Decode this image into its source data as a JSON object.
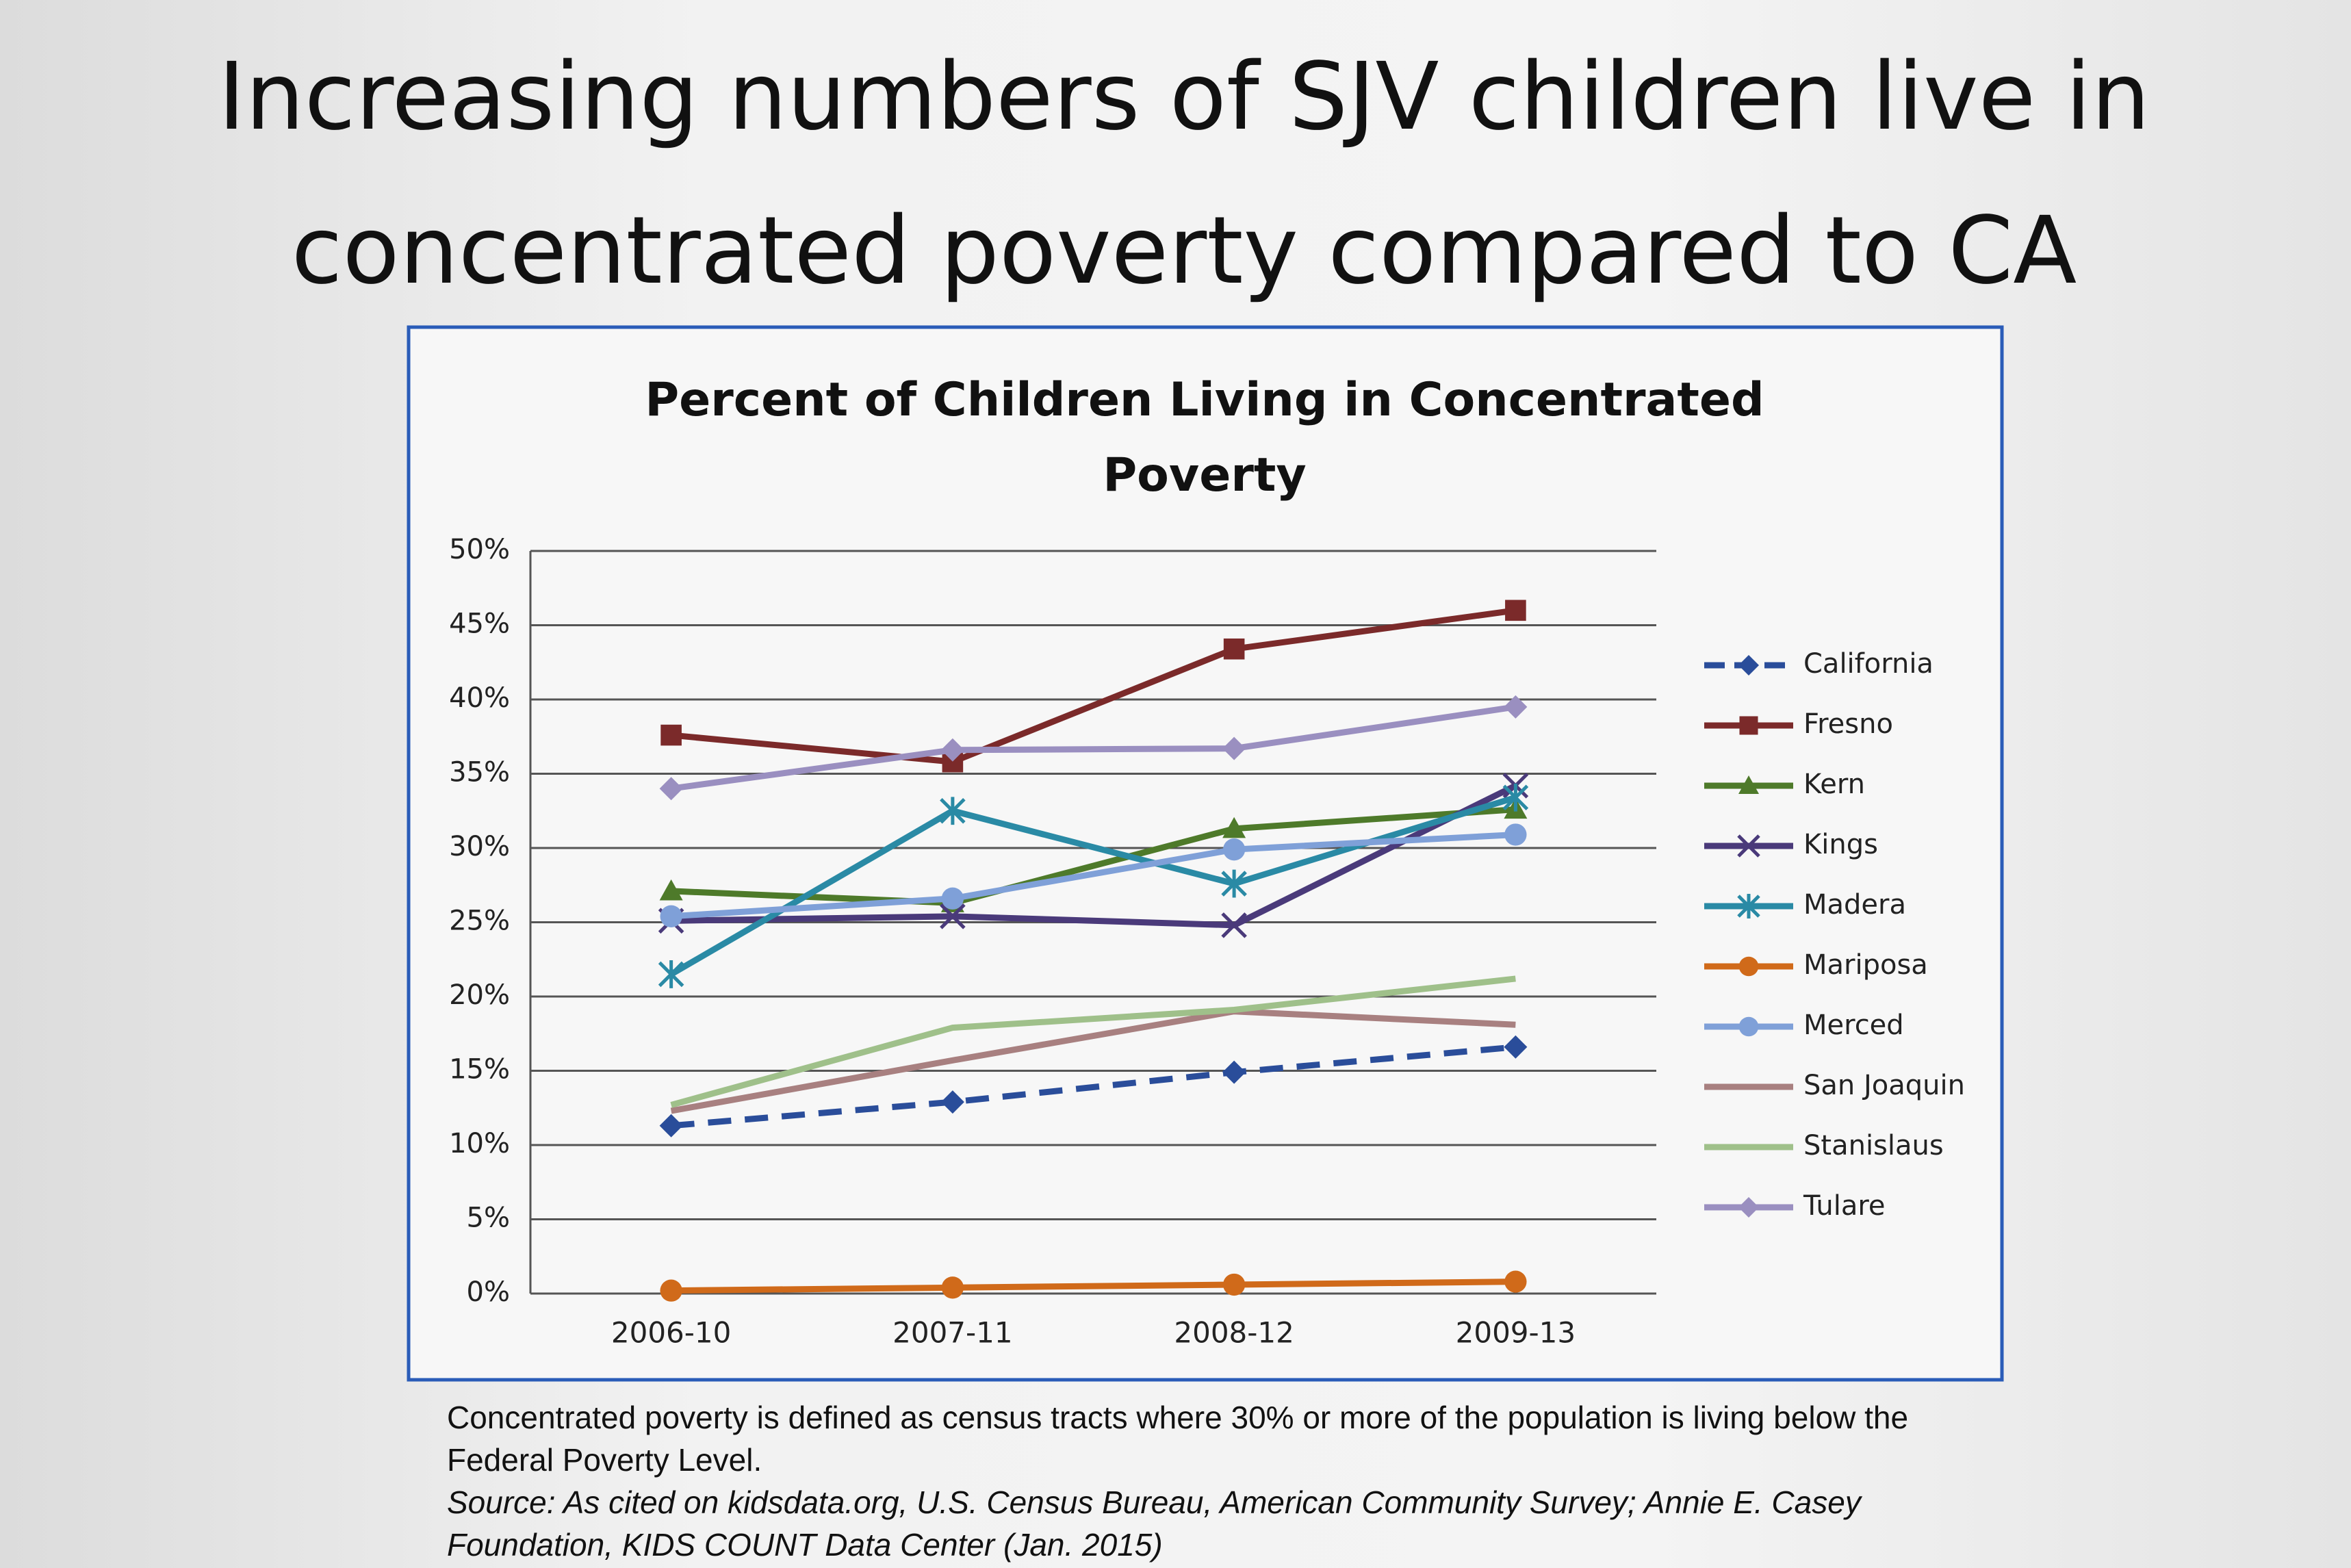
{
  "title": "Increasing numbers of SJV children live in concentrated poverty compared to CA",
  "chart_data": {
    "type": "line",
    "title": "Percent of Children Living in Concentrated Poverty",
    "categories": [
      "2006-10",
      "2007-11",
      "2008-12",
      "2009-13"
    ],
    "ylim": [
      0,
      50
    ],
    "yticks": [
      {
        "value": 0,
        "label": "0%"
      },
      {
        "value": 5,
        "label": "5%"
      },
      {
        "value": 10,
        "label": "10%"
      },
      {
        "value": 15,
        "label": "15%"
      },
      {
        "value": 20,
        "label": "20%"
      },
      {
        "value": 25,
        "label": "25%"
      },
      {
        "value": 30,
        "label": "30%"
      },
      {
        "value": 35,
        "label": "35%"
      },
      {
        "value": 40,
        "label": "40%"
      },
      {
        "value": 45,
        "label": "45%"
      },
      {
        "value": 50,
        "label": "50%"
      }
    ],
    "grid": true,
    "legend": "right",
    "series": [
      {
        "name": "California",
        "color": "#2a4d9a",
        "marker": "diamond",
        "dash": true,
        "values": [
          11.3,
          12.9,
          14.9,
          16.6
        ]
      },
      {
        "name": "Fresno",
        "color": "#7b2a2a",
        "marker": "square",
        "values": [
          37.6,
          35.8,
          43.4,
          46.0
        ]
      },
      {
        "name": "Kern",
        "color": "#4e7a2a",
        "marker": "triangle",
        "values": [
          27.1,
          26.3,
          31.3,
          32.6
        ]
      },
      {
        "name": "Kings",
        "color": "#4a3a7a",
        "marker": "x",
        "values": [
          25.1,
          25.4,
          24.8,
          34.2
        ]
      },
      {
        "name": "Madera",
        "color": "#2a8aa5",
        "marker": "star",
        "values": [
          21.5,
          32.5,
          27.6,
          33.4
        ]
      },
      {
        "name": "Mariposa",
        "color": "#d06a1a",
        "marker": "circle",
        "values": [
          0.2,
          0.4,
          0.6,
          0.8
        ]
      },
      {
        "name": "Merced",
        "color": "#7fa0d8",
        "marker": "circle",
        "values": [
          25.4,
          26.6,
          29.9,
          30.9
        ]
      },
      {
        "name": "San Joaquin",
        "color": "#a88080",
        "marker": "none",
        "values": [
          12.3,
          15.7,
          19.0,
          18.1
        ]
      },
      {
        "name": "Stanislaus",
        "color": "#9fc08a",
        "marker": "none",
        "values": [
          12.7,
          17.9,
          19.1,
          21.2
        ]
      },
      {
        "name": "Tulare",
        "color": "#9a8fc0",
        "marker": "diamond",
        "values": [
          34.0,
          36.6,
          36.7,
          39.5
        ]
      }
    ]
  },
  "footnote": {
    "definition": "Concentrated poverty is defined as census tracts where 30% or more of the population is living below the Federal Poverty Level.",
    "source": "Source: As cited on kidsdata.org, U.S. Census Bureau, American Community Survey; Annie E. Casey Foundation, KIDS COUNT Data Center (Jan. 2015)"
  }
}
